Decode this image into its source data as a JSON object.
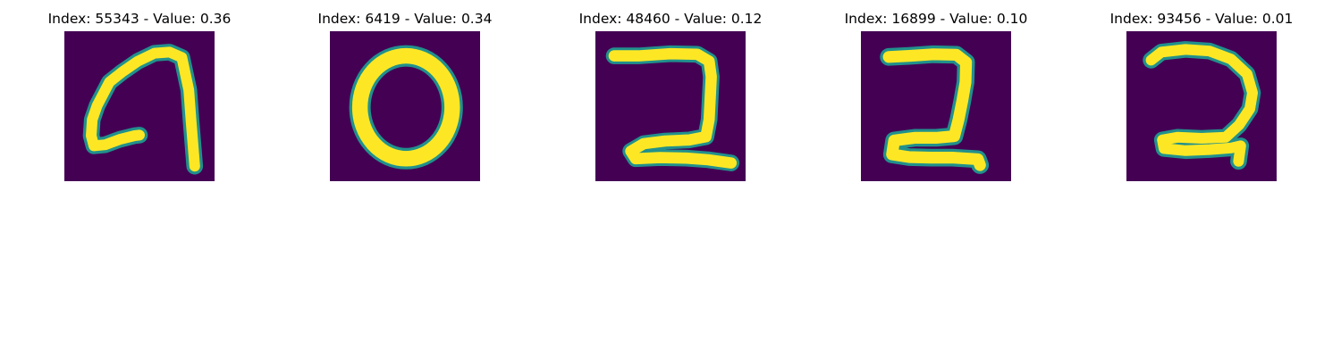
{
  "colors": {
    "background": "#440154",
    "stroke": "#fde725",
    "edge": "#21918c"
  },
  "panels": [
    {
      "title": "Index: 55343 - Value: 0.36",
      "digit_icon": "handwritten-9-icon"
    },
    {
      "title": "Index: 6419 - Value: 0.34",
      "digit_icon": "handwritten-0-icon"
    },
    {
      "title": "Index: 48460 - Value: 0.12",
      "digit_icon": "handwritten-2-icon"
    },
    {
      "title": "Index: 16899 - Value: 0.10",
      "digit_icon": "handwritten-2-icon"
    },
    {
      "title": "Index: 93456 - Value: 0.01",
      "digit_icon": "handwritten-2-icon"
    }
  ]
}
